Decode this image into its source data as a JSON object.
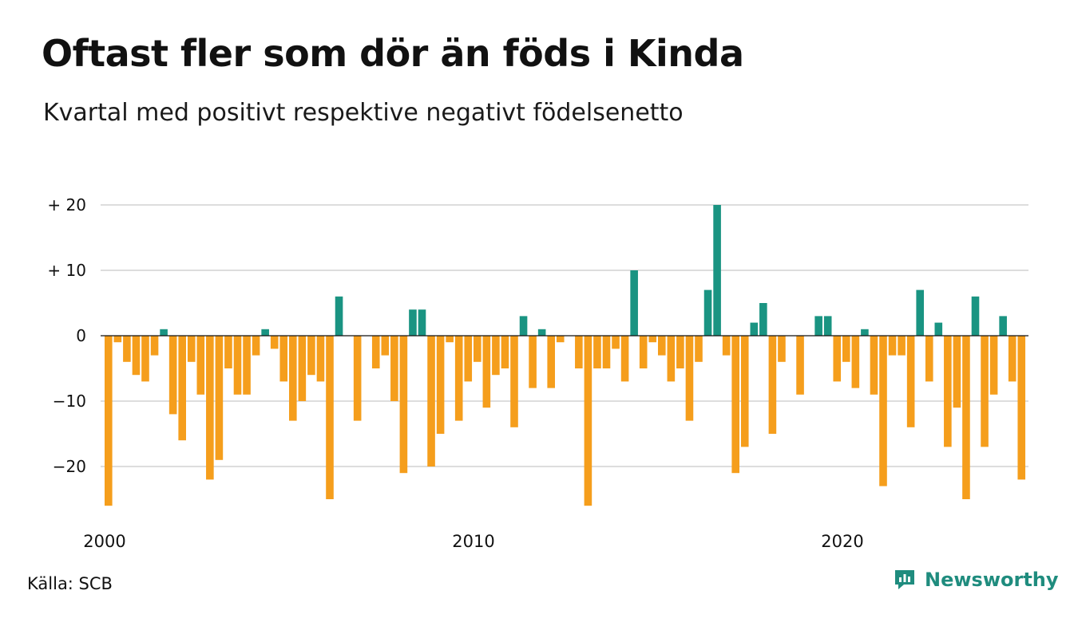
{
  "header": {
    "title": "Oftast fler som dör än föds i Kinda",
    "subtitle": "Kvartal med positivt respektive negativt födelsenetto"
  },
  "footer": {
    "source": "Källa: SCB",
    "brand": "Newsworthy",
    "brand_icon": "bar-chart-logo-icon"
  },
  "colors": {
    "positive": "#1a9482",
    "negative": "#f59e1c",
    "grid": "#dddddd",
    "brand": "#1f8c7e"
  },
  "chart_data": {
    "type": "bar",
    "x_start": "2000 Q1",
    "x_ticks": [
      "2000",
      "2010",
      "2020"
    ],
    "y_ticks": [
      20,
      10,
      0,
      -10,
      -20
    ],
    "y_tick_labels": [
      "+ 20",
      "+ 10",
      "0",
      "−10",
      "−20"
    ],
    "ylim": [
      -27,
      20
    ],
    "grid": true,
    "values": [
      -26,
      -1,
      -4,
      -6,
      -7,
      -3,
      1,
      -12,
      -16,
      -4,
      -9,
      -22,
      -19,
      -5,
      -9,
      -9,
      -3,
      1,
      -2,
      -7,
      -13,
      -10,
      -6,
      -7,
      -25,
      6,
      0,
      -13,
      0,
      -5,
      -3,
      -10,
      -21,
      4,
      4,
      -20,
      -15,
      -1,
      -13,
      -7,
      -4,
      -11,
      -6,
      -5,
      -14,
      3,
      -8,
      1,
      -8,
      -1,
      0,
      -5,
      -26,
      -5,
      -5,
      -2,
      -7,
      10,
      -5,
      -1,
      -3,
      -7,
      -5,
      -13,
      -4,
      7,
      20,
      -3,
      -21,
      -17,
      2,
      5,
      -15,
      -4,
      0,
      -9,
      0,
      3,
      3,
      -7,
      -4,
      -8,
      1,
      -9,
      -23,
      -3,
      -3,
      -14,
      7,
      -7,
      2,
      -17,
      -11,
      -25,
      6,
      -17,
      -9,
      3,
      -7,
      -22
    ]
  }
}
